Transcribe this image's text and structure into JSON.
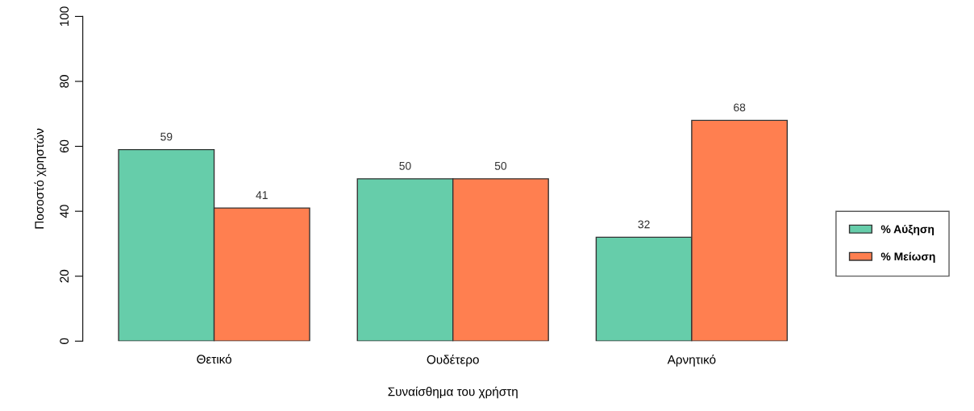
{
  "chart_data": {
    "type": "bar",
    "xlabel": "Συναίσθημα του χρήστη",
    "ylabel": "Ποσοστό χρηστών",
    "categories": [
      "Θετικό",
      "Ουδέτερο",
      "Αρνητικό"
    ],
    "series": [
      {
        "name": "% Αύξηση",
        "color": "#66cdaa",
        "values": [
          59,
          50,
          32
        ]
      },
      {
        "name": "% Μείωση",
        "color": "#ff7f50",
        "values": [
          41,
          50,
          68
        ]
      }
    ],
    "ylim": [
      0,
      100
    ],
    "yticks": [
      0,
      20,
      40,
      60,
      80,
      100
    ],
    "data_labels": true,
    "grid": false,
    "legend": "right"
  }
}
